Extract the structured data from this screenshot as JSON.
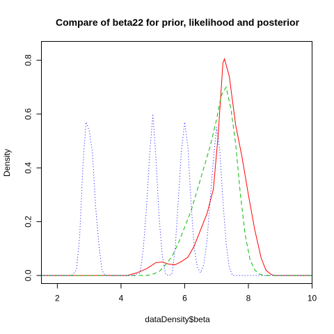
{
  "chart_data": {
    "type": "line",
    "title": "Compare of beta22 for prior, likelihood and posterior",
    "xlabel": "dataDensity$beta",
    "ylabel": "Density",
    "xlim": [
      1.5,
      10.0
    ],
    "ylim": [
      -0.03,
      0.87
    ],
    "x_ticks": [
      "2",
      "4",
      "6",
      "8",
      "10"
    ],
    "y_ticks": [
      "0.0",
      "0.2",
      "0.4",
      "0.6",
      "0.8"
    ],
    "grid": false,
    "legend": "none",
    "series": [
      {
        "color": "#FF0000",
        "dash": "solid",
        "points": [
          [
            1.5,
            0.0
          ],
          [
            4.2,
            0.0
          ],
          [
            4.5,
            0.01
          ],
          [
            4.8,
            0.025
          ],
          [
            5.1,
            0.048
          ],
          [
            5.3,
            0.05
          ],
          [
            5.5,
            0.042
          ],
          [
            5.7,
            0.04
          ],
          [
            5.9,
            0.052
          ],
          [
            6.1,
            0.068
          ],
          [
            6.3,
            0.11
          ],
          [
            6.5,
            0.17
          ],
          [
            6.7,
            0.23
          ],
          [
            6.9,
            0.32
          ],
          [
            7.05,
            0.52
          ],
          [
            7.2,
            0.79
          ],
          [
            7.25,
            0.805
          ],
          [
            7.4,
            0.74
          ],
          [
            7.6,
            0.56
          ],
          [
            7.8,
            0.44
          ],
          [
            8.0,
            0.3
          ],
          [
            8.2,
            0.17
          ],
          [
            8.4,
            0.065
          ],
          [
            8.55,
            0.02
          ],
          [
            8.7,
            0.005
          ],
          [
            8.8,
            0.0
          ],
          [
            10.0,
            0.0
          ]
        ]
      },
      {
        "color": "#00BB00",
        "dash": "6,4",
        "points": [
          [
            1.5,
            0.0
          ],
          [
            4.8,
            0.0
          ],
          [
            5.0,
            0.005
          ],
          [
            5.2,
            0.015
          ],
          [
            5.4,
            0.04
          ],
          [
            5.6,
            0.07
          ],
          [
            5.8,
            0.12
          ],
          [
            6.0,
            0.18
          ],
          [
            6.2,
            0.24
          ],
          [
            6.4,
            0.32
          ],
          [
            6.6,
            0.4
          ],
          [
            6.8,
            0.48
          ],
          [
            7.0,
            0.58
          ],
          [
            7.15,
            0.67
          ],
          [
            7.3,
            0.7
          ],
          [
            7.45,
            0.62
          ],
          [
            7.6,
            0.49
          ],
          [
            7.75,
            0.3
          ],
          [
            7.9,
            0.15
          ],
          [
            8.05,
            0.06
          ],
          [
            8.2,
            0.02
          ],
          [
            8.35,
            0.005
          ],
          [
            8.5,
            0.0
          ],
          [
            10.0,
            0.0
          ]
        ]
      },
      {
        "color": "#0000FF",
        "dash": "1,3",
        "points": [
          [
            1.5,
            0.0
          ],
          [
            2.45,
            0.0
          ],
          [
            2.6,
            0.02
          ],
          [
            2.7,
            0.14
          ],
          [
            2.8,
            0.4
          ],
          [
            2.9,
            0.57
          ],
          [
            3.0,
            0.54
          ],
          [
            3.1,
            0.46
          ],
          [
            3.2,
            0.26
          ],
          [
            3.3,
            0.12
          ],
          [
            3.4,
            0.02
          ],
          [
            3.5,
            0.0
          ],
          [
            4.4,
            0.0
          ],
          [
            4.6,
            0.01
          ],
          [
            4.7,
            0.1
          ],
          [
            4.8,
            0.25
          ],
          [
            4.9,
            0.45
          ],
          [
            5.0,
            0.6
          ],
          [
            5.1,
            0.43
          ],
          [
            5.2,
            0.21
          ],
          [
            5.3,
            0.07
          ],
          [
            5.4,
            0.005
          ],
          [
            5.5,
            0.0
          ],
          [
            5.6,
            0.005
          ],
          [
            5.7,
            0.1
          ],
          [
            5.8,
            0.28
          ],
          [
            5.9,
            0.47
          ],
          [
            6.0,
            0.57
          ],
          [
            6.1,
            0.48
          ],
          [
            6.2,
            0.27
          ],
          [
            6.3,
            0.1
          ],
          [
            6.4,
            0.03
          ],
          [
            6.5,
            0.01
          ],
          [
            6.6,
            0.04
          ],
          [
            6.7,
            0.13
          ],
          [
            6.8,
            0.28
          ],
          [
            6.9,
            0.43
          ],
          [
            7.0,
            0.55
          ],
          [
            7.1,
            0.47
          ],
          [
            7.2,
            0.28
          ],
          [
            7.3,
            0.12
          ],
          [
            7.4,
            0.03
          ],
          [
            7.5,
            0.0
          ],
          [
            10.0,
            0.0
          ]
        ]
      }
    ]
  }
}
